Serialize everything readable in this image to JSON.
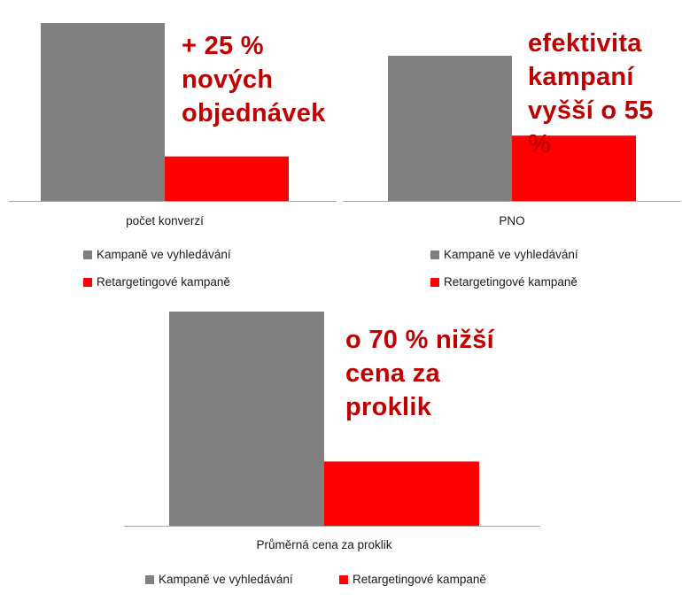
{
  "colors": {
    "search": "#808080",
    "retargeting": "#ff0000",
    "callout": "#c00000",
    "axis": "#a6a6a6"
  },
  "chart_data": [
    {
      "type": "bar",
      "categories": [
        "počet konverzí"
      ],
      "series": [
        {
          "name": "Kampaně ve vyhledávání",
          "values": [
            100
          ]
        },
        {
          "name": "Retargetingové kampaně",
          "values": [
            25
          ]
        }
      ],
      "xlabel": "počet konverzí",
      "ylim": [
        0,
        100
      ],
      "legend_placement": "bottom",
      "annotation": "+ 25 %\nnových\nobjednávek"
    },
    {
      "type": "bar",
      "categories": [
        "PNO"
      ],
      "series": [
        {
          "name": "Kampaně ve vyhledávání",
          "values": [
            100
          ]
        },
        {
          "name": "Retargetingové kampaně",
          "values": [
            45
          ]
        }
      ],
      "xlabel": "PNO",
      "ylim": [
        0,
        100
      ],
      "legend_placement": "bottom",
      "annotation": "efektivita\nkampaní\nvyšší o 55 %"
    },
    {
      "type": "bar",
      "categories": [
        "Průměrná cena za proklik"
      ],
      "series": [
        {
          "name": "Kampaně ve vyhledávání",
          "values": [
            100
          ]
        },
        {
          "name": "Retargetingové kampaně",
          "values": [
            30
          ]
        }
      ],
      "xlabel": "Průměrná cena za proklik",
      "ylim": [
        0,
        100
      ],
      "legend_placement": "bottom",
      "annotation": "o 70 % nižší\ncena za\nproklik"
    }
  ]
}
